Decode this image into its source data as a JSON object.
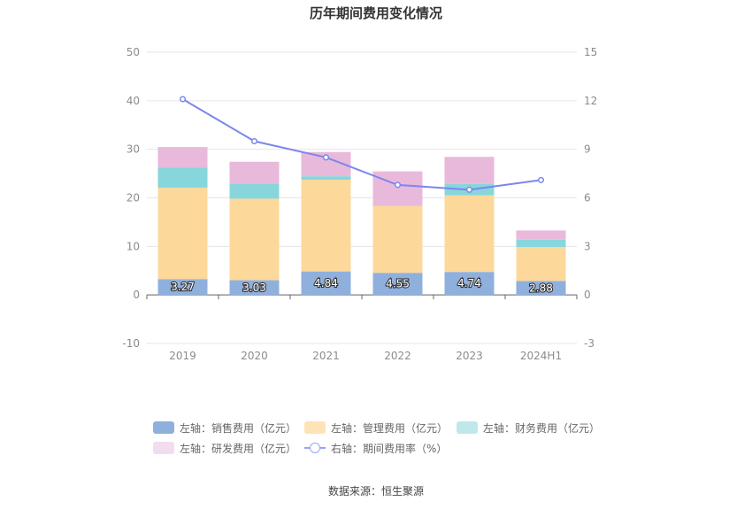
{
  "chart_data": {
    "type": "bar",
    "title": "历年期间费用变化情况",
    "categories": [
      "2019",
      "2020",
      "2021",
      "2022",
      "2023",
      "2024H1"
    ],
    "left_axis": {
      "ylim": [
        -10,
        50
      ],
      "ticks": [
        -10,
        0,
        10,
        20,
        30,
        40,
        50
      ]
    },
    "right_axis": {
      "ylim": [
        -3,
        15
      ],
      "ticks": [
        -3,
        0,
        3,
        6,
        9,
        12,
        15
      ]
    },
    "grid": true,
    "legend_position": "bottom",
    "series": [
      {
        "name": "左轴：销售费用（亿元）",
        "type": "stacked-bar",
        "axis": "left",
        "color": "#8fb0dd",
        "values": [
          3.27,
          3.03,
          4.84,
          4.55,
          4.74,
          2.88
        ],
        "labels": [
          "3.27",
          "3.03",
          "4.84",
          "4.55",
          "4.74",
          "2.88"
        ]
      },
      {
        "name": "左轴：管理费用（亿元）",
        "type": "stacked-bar",
        "axis": "left",
        "color": "#fdd89b",
        "values": [
          18.8,
          16.8,
          18.9,
          13.8,
          15.8,
          7.0
        ]
      },
      {
        "name": "左轴：财务费用（亿元）",
        "type": "stacked-bar",
        "axis": "left",
        "color": "#87d6dc",
        "values": [
          4.2,
          3.0,
          0.7,
          0.0,
          2.3,
          1.5
        ]
      },
      {
        "name": "左轴：研发费用（亿元）",
        "type": "stacked-bar",
        "axis": "left",
        "color": "#e8b9db",
        "values": [
          4.2,
          4.6,
          5.0,
          7.1,
          5.6,
          1.9
        ]
      },
      {
        "name": "右轴：期间费用率（%）",
        "type": "line",
        "axis": "right",
        "color": "#7b86ee",
        "values": [
          12.1,
          9.5,
          8.5,
          6.8,
          6.5,
          7.1
        ]
      }
    ],
    "source": "数据来源：恒生聚源"
  }
}
